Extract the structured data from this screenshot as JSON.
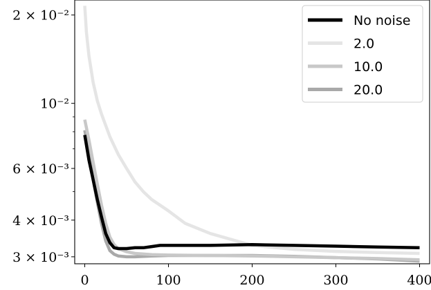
{
  "chart_data": {
    "type": "line",
    "title": "",
    "xlabel": "",
    "ylabel": "",
    "x_scale": "linear",
    "y_scale": "log",
    "xlim": [
      -12,
      412
    ],
    "ylim": [
      0.00284,
      0.0225
    ],
    "x_ticks": [
      {
        "value": 0,
        "label": "0"
      },
      {
        "value": 100,
        "label": "100"
      },
      {
        "value": 200,
        "label": "200"
      },
      {
        "value": 300,
        "label": "300"
      },
      {
        "value": 400,
        "label": "400"
      }
    ],
    "y_ticks": [
      {
        "value": 0.003,
        "label": "3 × 10⁻³"
      },
      {
        "value": 0.004,
        "label": "4 × 10⁻³"
      },
      {
        "value": 0.006,
        "label": "6 × 10⁻³"
      },
      {
        "value": 0.01,
        "label": "10⁻²"
      },
      {
        "value": 0.02,
        "label": "2 × 10⁻²"
      }
    ],
    "y_minor_ticks": [
      0.005,
      0.007,
      0.008,
      0.009
    ],
    "grid": false,
    "legend_position": "top-right",
    "series": [
      {
        "name": "No noise",
        "color": "#000000",
        "x": [
          0,
          5,
          10,
          15,
          20,
          25,
          30,
          35,
          40,
          50,
          60,
          70,
          80,
          90,
          100,
          150,
          200,
          250,
          300,
          350,
          400
        ],
        "y": [
          0.0078,
          0.0064,
          0.0055,
          0.0047,
          0.0041,
          0.0036,
          0.00335,
          0.00322,
          0.0032,
          0.0032,
          0.00322,
          0.00322,
          0.00325,
          0.00328,
          0.00328,
          0.00328,
          0.0033,
          0.00328,
          0.00326,
          0.00324,
          0.00322
        ]
      },
      {
        "name": "2.0",
        "color": "#e5e5e5",
        "x": [
          0,
          2,
          5,
          10,
          15,
          20,
          30,
          40,
          50,
          60,
          70,
          80,
          100,
          120,
          150,
          200,
          250,
          300,
          350,
          400
        ],
        "y": [
          0.0215,
          0.0175,
          0.0145,
          0.0118,
          0.0102,
          0.0092,
          0.0077,
          0.0067,
          0.006,
          0.0054,
          0.005,
          0.0047,
          0.0043,
          0.0039,
          0.0036,
          0.00328,
          0.00318,
          0.00313,
          0.0031,
          0.00308
        ]
      },
      {
        "name": "10.0",
        "color": "#c8c8c8",
        "x": [
          0,
          5,
          10,
          15,
          20,
          25,
          30,
          35,
          40,
          50,
          60,
          80,
          100,
          150,
          200,
          250,
          300,
          350,
          400
        ],
        "y": [
          0.0088,
          0.0075,
          0.0063,
          0.0053,
          0.0045,
          0.0039,
          0.0035,
          0.0033,
          0.0032,
          0.00312,
          0.00308,
          0.00305,
          0.00304,
          0.00303,
          0.00302,
          0.003,
          0.00298,
          0.00296,
          0.00293
        ]
      },
      {
        "name": "20.0",
        "color": "#a9a9a9",
        "x": [
          0,
          5,
          10,
          15,
          20,
          25,
          30,
          35,
          40,
          50,
          60,
          80,
          100,
          150,
          200,
          250,
          300,
          350,
          400
        ],
        "y": [
          0.0081,
          0.0068,
          0.0055,
          0.0046,
          0.0039,
          0.0034,
          0.00315,
          0.00306,
          0.00302,
          0.003,
          0.003,
          0.00302,
          0.00303,
          0.00303,
          0.00303,
          0.00301,
          0.00298,
          0.00295,
          0.0029
        ]
      }
    ]
  }
}
